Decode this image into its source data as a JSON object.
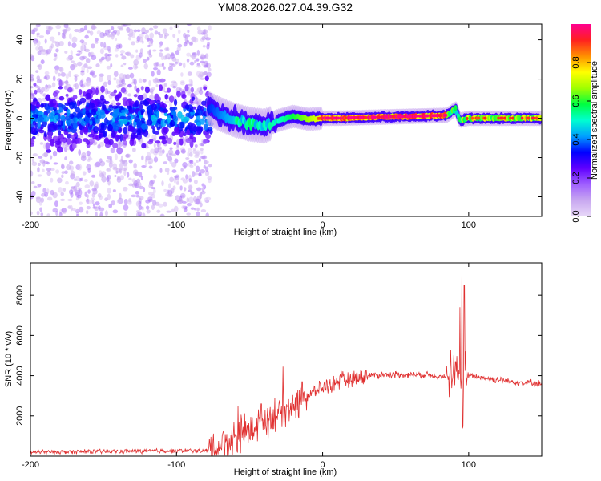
{
  "title": "YM08.2026.027.04.39.G32",
  "chart_data": [
    {
      "type": "heatmap",
      "name": "spectrogram",
      "xlabel": "Height of straight line (km)",
      "ylabel": "Frequency (Hz)",
      "xlim": [
        -200,
        150
      ],
      "ylim": [
        -50,
        48
      ],
      "xticks": [
        -200,
        -100,
        0,
        100
      ],
      "xtick_labels": [
        "-200",
        "-100",
        "0",
        "100"
      ],
      "yticks": [
        -40,
        -20,
        0,
        20,
        40
      ],
      "ytick_labels": [
        "-40",
        "-20",
        "0",
        "20",
        "40"
      ],
      "colorbar": {
        "label": "Normalized spectral amplitude",
        "range": [
          0,
          1
        ],
        "ticks": [
          0.0,
          0.2,
          0.4,
          0.6,
          0.8
        ],
        "tick_labels": [
          "0.0",
          "0.2",
          "0.4",
          "0.6",
          "0.8"
        ],
        "colormap": [
          "#e8d8f8",
          "#c8a8f0",
          "#a060ff",
          "#6000ff",
          "#0000ff",
          "#00a0ff",
          "#00ffd0",
          "#00ff40",
          "#a0ff00",
          "#ffff00",
          "#ff9000",
          "#ff2020",
          "#ff0090"
        ]
      },
      "ridge_km": [
        -78,
        -70,
        -60,
        -50,
        -40,
        -30,
        -20,
        -10,
        0,
        10,
        50,
        85,
        88,
        91,
        94,
        100,
        120,
        150
      ],
      "ridge_hz": [
        5,
        2,
        -1,
        -3,
        -4,
        -1,
        1,
        -0.5,
        0,
        0,
        0.8,
        1.5,
        3,
        5,
        -1,
        0,
        0,
        0
      ]
    },
    {
      "type": "line",
      "name": "snr",
      "xlabel": "Height of straight line (km)",
      "ylabel": "SNR (10 * v/v)",
      "xlim": [
        -200,
        150
      ],
      "ylim": [
        0,
        9600
      ],
      "xticks": [
        -200,
        -100,
        0,
        100
      ],
      "xtick_labels": [
        "-200",
        "-100",
        "0",
        "100"
      ],
      "yticks": [
        2000,
        4000,
        6000,
        8000
      ],
      "ytick_labels": [
        "2000",
        "4000",
        "6000",
        "8000"
      ],
      "line_color": "#e03030",
      "baseline_km": [
        -200,
        -80,
        -75,
        -60,
        -50,
        -40,
        -30,
        -20,
        -10,
        0,
        10,
        20,
        30,
        40,
        50,
        60,
        70,
        80,
        85,
        90,
        100,
        110,
        120,
        130,
        140,
        150
      ],
      "baseline_snr": [
        200,
        280,
        350,
        900,
        1300,
        1800,
        2200,
        2600,
        3000,
        3400,
        3700,
        3900,
        4000,
        4050,
        4050,
        4050,
        4050,
        4000,
        3900,
        4000,
        4000,
        3900,
        3800,
        3700,
        3650,
        3600
      ],
      "peaks_km": [
        -58,
        -42,
        -27,
        -14,
        85,
        91,
        94,
        95.5,
        97
      ],
      "peaks_snr": [
        2500,
        2600,
        4450,
        3700,
        4500,
        4700,
        7400,
        9600,
        8500
      ]
    }
  ]
}
